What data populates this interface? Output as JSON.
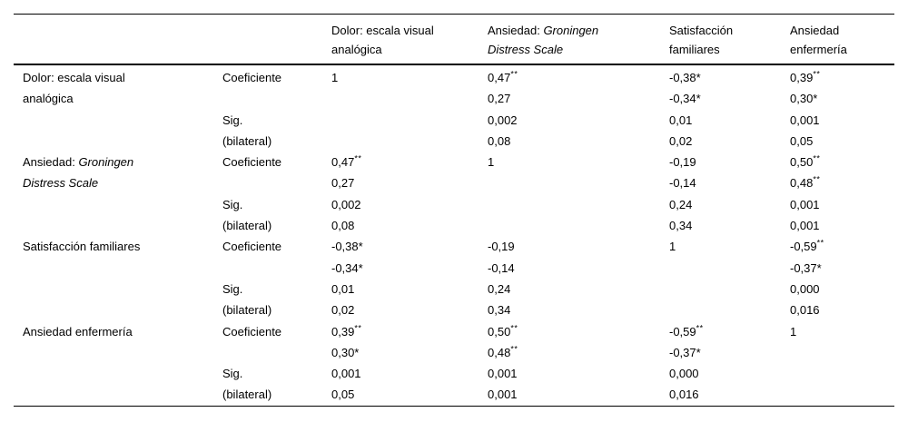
{
  "table": {
    "columns": [
      {
        "key": "rowhead",
        "lines": []
      },
      {
        "key": "stat",
        "lines": []
      },
      {
        "key": "dolor",
        "lines": [
          {
            "t": "Dolor: escala visual"
          },
          {
            "t": "analógica"
          }
        ]
      },
      {
        "key": "gds",
        "lines": [
          {
            "t": "Ansiedad: ",
            "i": "Groningen"
          },
          {
            "i": "Distress Scale"
          }
        ]
      },
      {
        "key": "satisfaccion",
        "lines": [
          {
            "t": "Satisfacción"
          },
          {
            "t": "familiares"
          }
        ]
      },
      {
        "key": "enfermeria",
        "lines": [
          {
            "t": "Ansiedad"
          },
          {
            "t": "enfermería"
          }
        ]
      }
    ],
    "stat_labels": {
      "coef": "Coeficiente",
      "sig_line1": "Sig.",
      "sig_line2": "(bilateral)"
    },
    "value_columns": [
      "dolor",
      "gds",
      "satisfaccion",
      "enfermeria"
    ],
    "rows": [
      {
        "label_lines": [
          {
            "t": "Dolor: escala visual"
          },
          {
            "t": "analógica"
          }
        ],
        "cells": {
          "dolor": [
            "1",
            "",
            "",
            ""
          ],
          "gds": [
            "0,47**",
            "0,27",
            "0,002",
            "0,08"
          ],
          "satisfaccion": [
            "-0,38*",
            "-0,34*",
            "0,01",
            "0,02"
          ],
          "enfermeria": [
            "0,39**",
            "0,30*",
            "0,001",
            "0,05"
          ]
        }
      },
      {
        "label_lines": [
          {
            "t": "Ansiedad: ",
            "i": "Groningen"
          },
          {
            "i": "Distress Scale"
          }
        ],
        "cells": {
          "dolor": [
            "0,47**",
            "0,27",
            "0,002",
            "0,08"
          ],
          "gds": [
            "1",
            "",
            "",
            ""
          ],
          "satisfaccion": [
            "-0,19",
            "-0,14",
            "0,24",
            "0,34"
          ],
          "enfermeria": [
            "0,50**",
            "0,48**",
            "0,001",
            "0,001"
          ]
        }
      },
      {
        "label_lines": [
          {
            "t": "Satisfacción familiares"
          }
        ],
        "cells": {
          "dolor": [
            "-0,38*",
            "-0,34*",
            "0,01",
            "0,02"
          ],
          "gds": [
            "-0,19",
            "-0,14",
            "0,24",
            "0,34"
          ],
          "satisfaccion": [
            "1",
            "",
            "",
            ""
          ],
          "enfermeria": [
            "-0,59**",
            "-0,37*",
            "0,000",
            "0,016"
          ]
        }
      },
      {
        "label_lines": [
          {
            "t": "Ansiedad enfermería"
          }
        ],
        "cells": {
          "dolor": [
            "0,39**",
            "0,30*",
            "0,001",
            "0,05"
          ],
          "gds": [
            "0,50**",
            "0,48**",
            "0,001",
            "0,001"
          ],
          "satisfaccion": [
            "-0,59**",
            "-0,37*",
            "0,000",
            "0,016"
          ],
          "enfermeria": [
            "1",
            "",
            "",
            ""
          ]
        }
      }
    ]
  },
  "colors": {
    "text": "#000000",
    "rule": "#000000",
    "background": "#ffffff"
  }
}
